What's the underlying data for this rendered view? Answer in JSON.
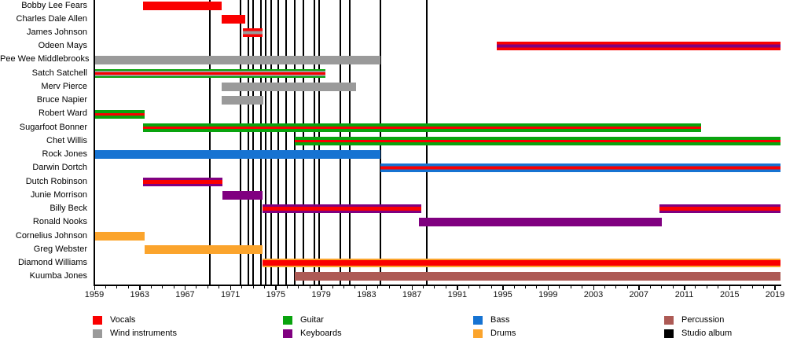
{
  "chart_data": {
    "type": "gantt-timeline",
    "title": "",
    "description": "Band members timeline: colored bars show each member's tenure and instrument roles; black vertical lines mark studio albums",
    "x_axis": {
      "start": 1959,
      "end": 2019.5,
      "major_ticks": [
        1959,
        1963,
        1967,
        1971,
        1975,
        1979,
        1983,
        1987,
        1991,
        1995,
        1999,
        2003,
        2007,
        2011,
        2015,
        2019
      ],
      "minor_tick_interval": 1,
      "grid": false
    },
    "colors": {
      "vocals": "#fa0000",
      "wind": "#9a9a9a",
      "guitar": "#09a30e",
      "keyboards": "#800080",
      "bass": "#1673d2",
      "drums": "#fba42c",
      "percussion": "#ad5a55",
      "album": "#000000",
      "axis": "#000000",
      "text": "#000000"
    },
    "patterns": {
      "vocals": [
        [
          "vocals",
          100
        ]
      ],
      "wind": [
        [
          "wind",
          100
        ]
      ],
      "bass": [
        [
          "bass",
          100
        ]
      ],
      "keyboards": [
        [
          "keyboards",
          100
        ]
      ],
      "drums": [
        [
          "drums",
          100
        ]
      ],
      "percussion": [
        [
          "percussion",
          100
        ]
      ],
      "guitar_vocals": [
        [
          "guitar",
          36
        ],
        [
          "vocals",
          28
        ],
        [
          "guitar",
          36
        ]
      ],
      "bass_vocals": [
        [
          "bass",
          32
        ],
        [
          "vocals",
          36
        ],
        [
          "bass",
          32
        ]
      ],
      "keyboards_vocals": [
        [
          "keyboards",
          27
        ],
        [
          "vocals",
          46
        ],
        [
          "keyboards",
          27
        ]
      ],
      "drums_vocals": [
        [
          "drums",
          18
        ],
        [
          "vocals",
          64
        ],
        [
          "drums",
          18
        ]
      ],
      "vocals_wind": [
        [
          "vocals",
          30
        ],
        [
          "wind",
          40
        ],
        [
          "vocals",
          30
        ]
      ],
      "vocals_keyboards": [
        [
          "vocals",
          32
        ],
        [
          "keyboards",
          36
        ],
        [
          "vocals",
          32
        ]
      ],
      "wind_vocals_guitar": [
        [
          "guitar",
          16
        ],
        [
          "wind",
          22
        ],
        [
          "vocals",
          24
        ],
        [
          "wind",
          22
        ],
        [
          "guitar",
          16
        ]
      ]
    },
    "members": [
      {
        "name": "Bobby Lee Fears",
        "segments": [
          {
            "from": 1963.3,
            "to": 1970.2,
            "pattern": "vocals"
          }
        ]
      },
      {
        "name": "Charles Dale Allen",
        "segments": [
          {
            "from": 1970.2,
            "to": 1972.3,
            "pattern": "vocals"
          }
        ]
      },
      {
        "name": "James Johnson",
        "segments": [
          {
            "from": 1972.1,
            "to": 1973.8,
            "pattern": "vocals_wind"
          }
        ]
      },
      {
        "name": "Odeen Mays",
        "segments": [
          {
            "from": 1994.5,
            "to": 2019.5,
            "pattern": "vocals_keyboards"
          }
        ]
      },
      {
        "name": "Pee Wee Middlebrooks",
        "segments": [
          {
            "from": 1959.0,
            "to": 1984.2,
            "pattern": "wind"
          }
        ]
      },
      {
        "name": "Satch Satchell",
        "segments": [
          {
            "from": 1959.0,
            "to": 1979.4,
            "pattern": "wind_vocals_guitar"
          }
        ]
      },
      {
        "name": "Merv Pierce",
        "segments": [
          {
            "from": 1970.2,
            "to": 1982.1,
            "pattern": "wind"
          }
        ]
      },
      {
        "name": "Bruce Napier",
        "segments": [
          {
            "from": 1970.2,
            "to": 1973.9,
            "pattern": "wind"
          }
        ]
      },
      {
        "name": "Robert Ward",
        "segments": [
          {
            "from": 1959.0,
            "to": 1963.4,
            "pattern": "guitar_vocals"
          }
        ]
      },
      {
        "name": "Sugarfoot Bonner",
        "segments": [
          {
            "from": 1963.3,
            "to": 2012.5,
            "pattern": "guitar_vocals"
          }
        ]
      },
      {
        "name": "Chet Willis",
        "segments": [
          {
            "from": 1976.7,
            "to": 2019.5,
            "pattern": "guitar_vocals"
          }
        ]
      },
      {
        "name": "Rock Jones",
        "segments": [
          {
            "from": 1959.0,
            "to": 1984.2,
            "pattern": "bass"
          }
        ]
      },
      {
        "name": "Darwin Dortch",
        "segments": [
          {
            "from": 1984.2,
            "to": 2019.5,
            "pattern": "bass_vocals"
          }
        ]
      },
      {
        "name": "Dutch Robinson",
        "segments": [
          {
            "from": 1963.3,
            "to": 1970.3,
            "pattern": "keyboards_vocals"
          }
        ]
      },
      {
        "name": "Junie Morrison",
        "segments": [
          {
            "from": 1970.3,
            "to": 1973.8,
            "pattern": "keyboards"
          }
        ]
      },
      {
        "name": "Billy Beck",
        "segments": [
          {
            "from": 1973.8,
            "to": 1987.8,
            "pattern": "keyboards_vocals"
          },
          {
            "from": 2008.8,
            "to": 2019.5,
            "pattern": "keyboards_vocals"
          }
        ]
      },
      {
        "name": "Ronald Nooks",
        "segments": [
          {
            "from": 1987.6,
            "to": 2009.0,
            "pattern": "keyboards"
          }
        ]
      },
      {
        "name": "Cornelius Johnson",
        "segments": [
          {
            "from": 1959.0,
            "to": 1963.4,
            "pattern": "drums"
          }
        ]
      },
      {
        "name": "Greg Webster",
        "segments": [
          {
            "from": 1963.4,
            "to": 1973.8,
            "pattern": "drums"
          }
        ]
      },
      {
        "name": "Diamond Williams",
        "segments": [
          {
            "from": 1973.8,
            "to": 2019.5,
            "pattern": "drums_vocals"
          }
        ]
      },
      {
        "name": "Kuumba Jones",
        "segments": [
          {
            "from": 1976.7,
            "to": 2019.5,
            "pattern": "percussion"
          }
        ]
      }
    ],
    "album_years": [
      1969.2,
      1971.9,
      1972.6,
      1973.0,
      1973.7,
      1974.1,
      1974.6,
      1975.2,
      1975.9,
      1976.7,
      1977.4,
      1978.4,
      1978.8,
      1980.7,
      1981.5,
      1984.2,
      1988.3
    ],
    "legend": {
      "items": [
        {
          "label": "Vocals",
          "color": "vocals"
        },
        {
          "label": "Wind instruments",
          "color": "wind"
        },
        {
          "label": "Guitar",
          "color": "guitar"
        },
        {
          "label": "Keyboards",
          "color": "keyboards"
        },
        {
          "label": "Bass",
          "color": "bass"
        },
        {
          "label": "Drums",
          "color": "drums"
        },
        {
          "label": "Percussion",
          "color": "percussion"
        },
        {
          "label": "Studio album",
          "color": "album"
        }
      ]
    }
  }
}
